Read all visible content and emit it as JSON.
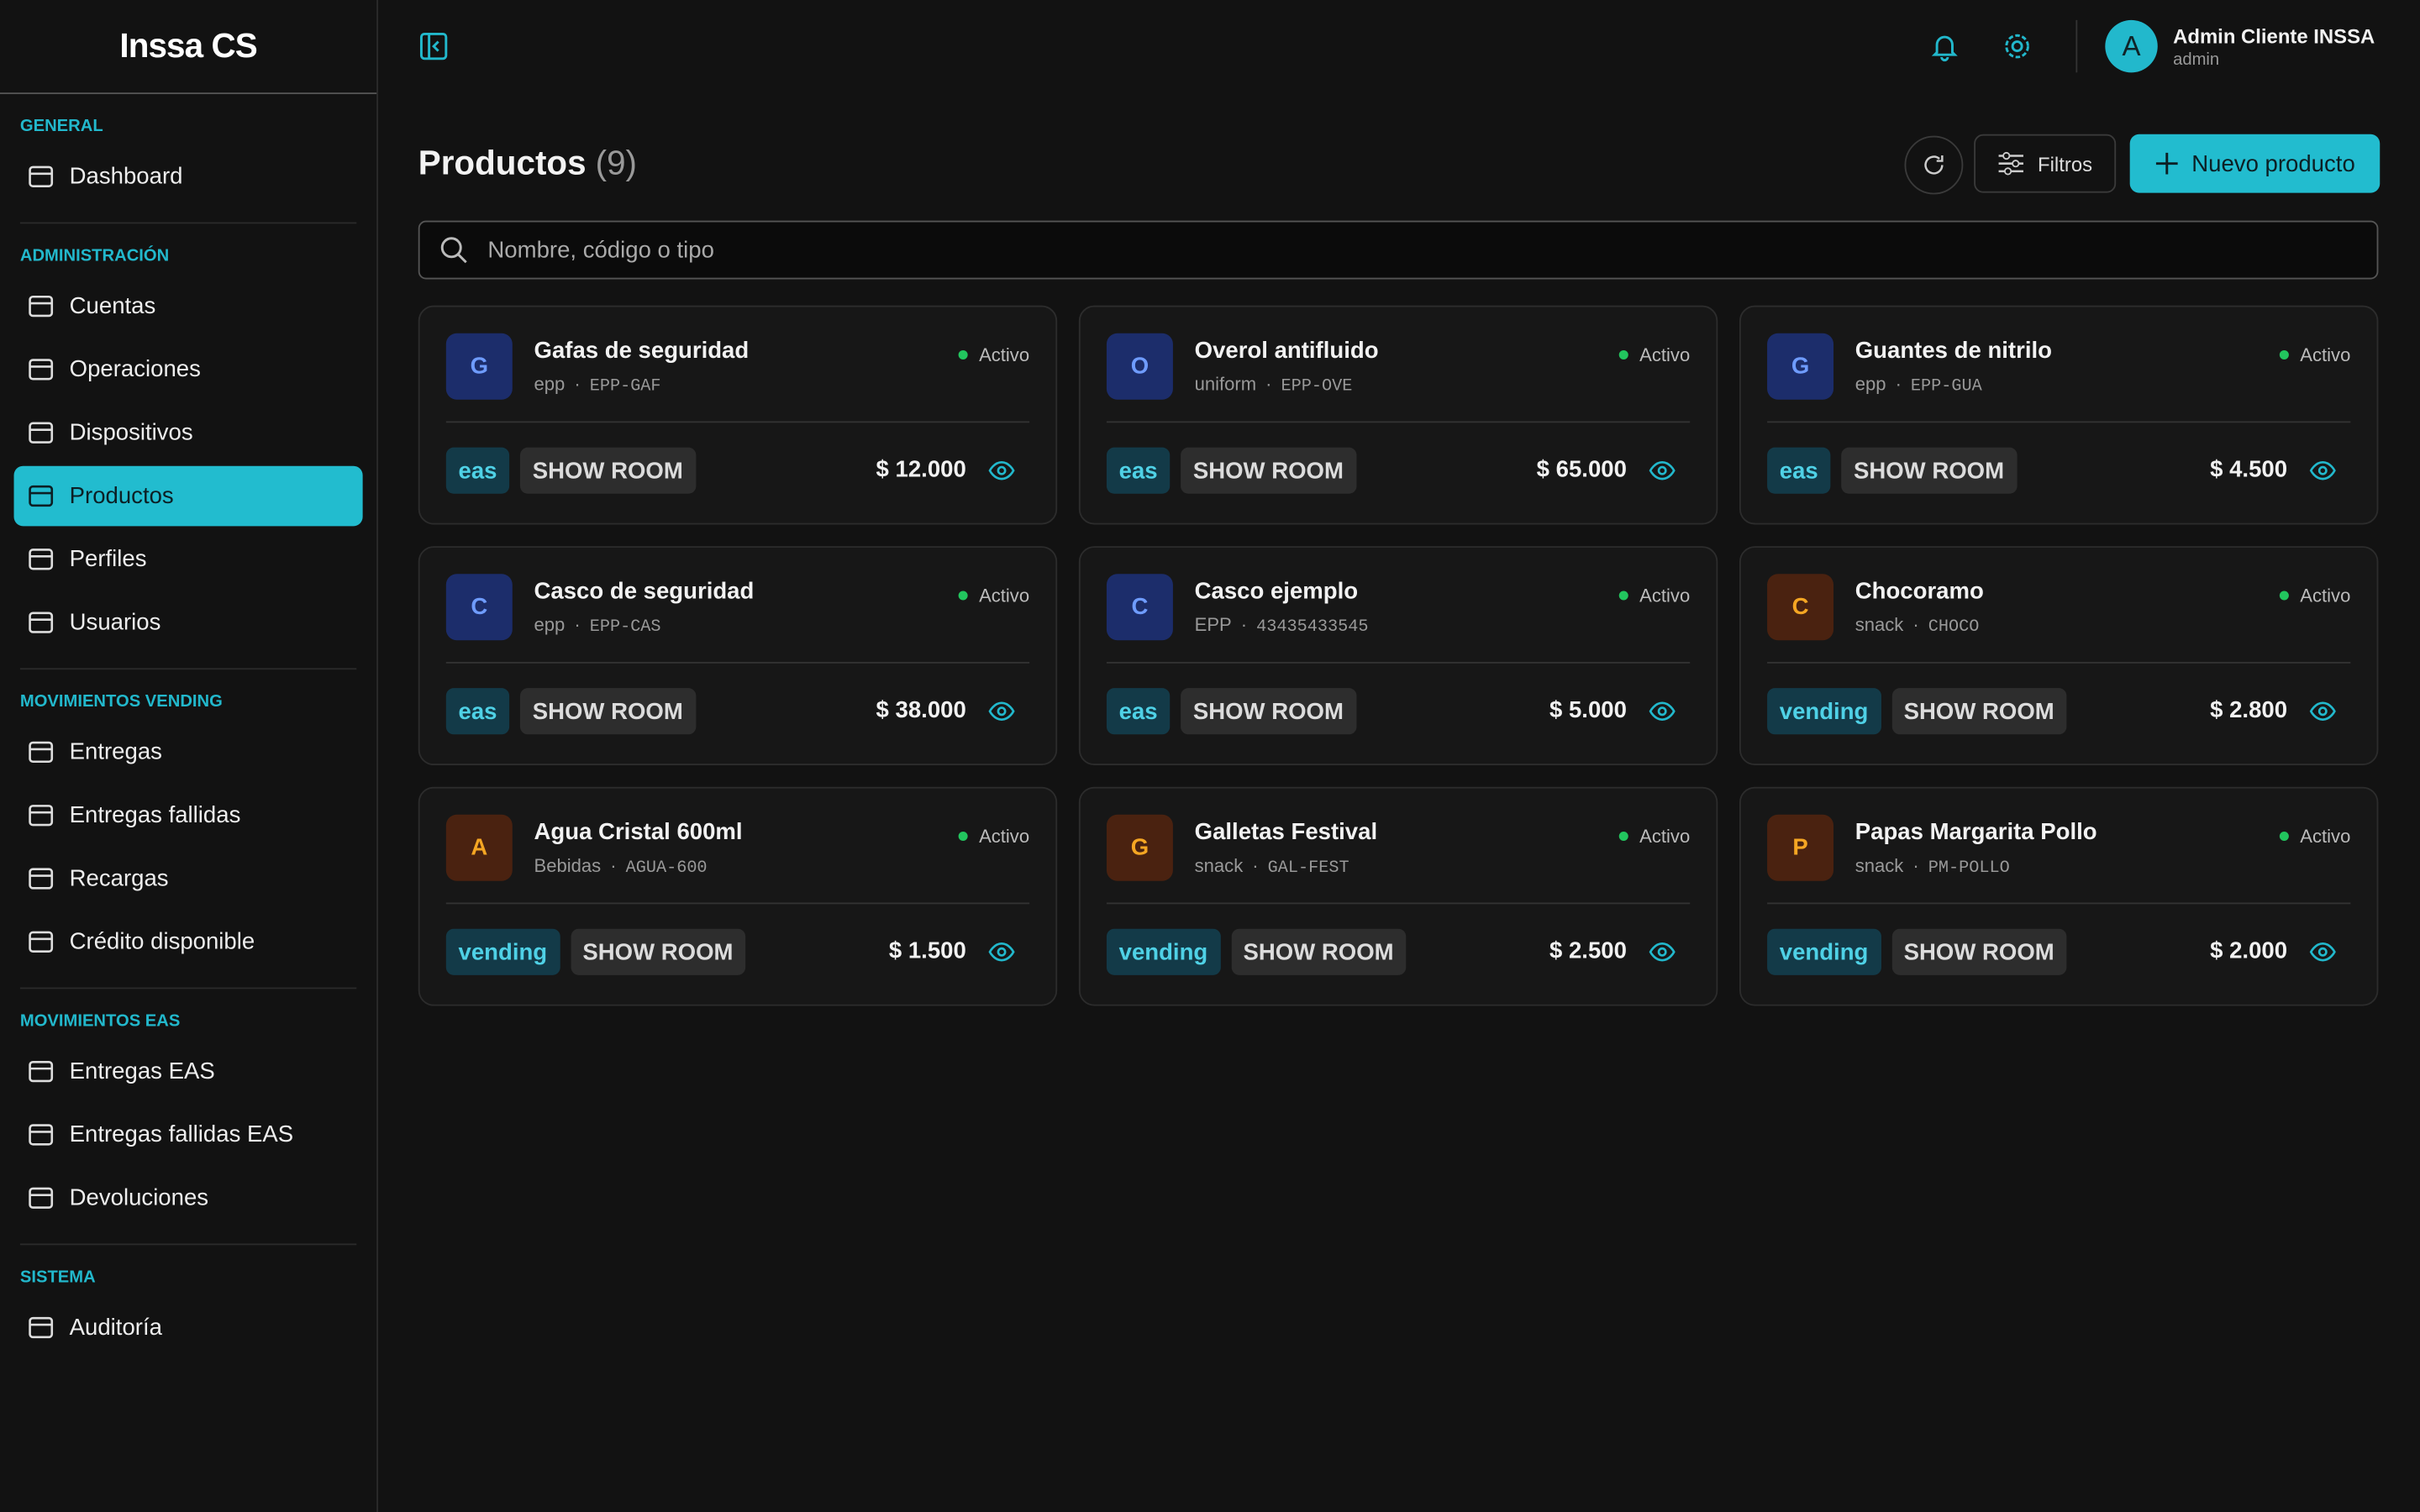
{
  "logo": "Inssa CS",
  "sidebar": {
    "active_item": "Productos",
    "sections": [
      {
        "title": "GENERAL",
        "items": [
          "Dashboard"
        ]
      },
      {
        "title": "ADMINISTRACIÓN",
        "items": [
          "Cuentas",
          "Operaciones",
          "Dispositivos",
          "Productos",
          "Perfiles",
          "Usuarios"
        ]
      },
      {
        "title": "MOVIMIENTOS VENDING",
        "items": [
          "Entregas",
          "Entregas fallidas",
          "Recargas",
          "Crédito disponible"
        ]
      },
      {
        "title": "MOVIMIENTOS EAS",
        "items": [
          "Entregas EAS",
          "Entregas fallidas EAS",
          "Devoluciones"
        ]
      },
      {
        "title": "SISTEMA",
        "items": [
          "Auditoría"
        ]
      }
    ]
  },
  "topbar": {
    "user_initial": "A",
    "user_name": "Admin Cliente INSSA",
    "user_role": "admin"
  },
  "header": {
    "title": "Productos",
    "count": "(9)",
    "filters_button": "Filtros",
    "new_button": "Nuevo producto",
    "search_placeholder": "Nombre, código o tipo"
  },
  "products": [
    {
      "initial": "G",
      "tone": "blue",
      "name": "Gafas de seguridad",
      "type": "epp",
      "code": "EPP-GAF",
      "status": "Activo",
      "tags": [
        "eas",
        "SHOW ROOM"
      ],
      "price": "$ 12.000"
    },
    {
      "initial": "O",
      "tone": "blue",
      "name": "Overol antifluido",
      "type": "uniform",
      "code": "EPP-OVE",
      "status": "Activo",
      "tags": [
        "eas",
        "SHOW ROOM"
      ],
      "price": "$ 65.000"
    },
    {
      "initial": "G",
      "tone": "blue",
      "name": "Guantes de nitrilo",
      "type": "epp",
      "code": "EPP-GUA",
      "status": "Activo",
      "tags": [
        "eas",
        "SHOW ROOM"
      ],
      "price": "$ 4.500"
    },
    {
      "initial": "C",
      "tone": "blue",
      "name": "Casco de seguridad",
      "type": "epp",
      "code": "EPP-CAS",
      "status": "Activo",
      "tags": [
        "eas",
        "SHOW ROOM"
      ],
      "price": "$ 38.000"
    },
    {
      "initial": "C",
      "tone": "blue",
      "name": "Casco ejemplo",
      "type": "EPP",
      "code": "43435433545",
      "status": "Activo",
      "tags": [
        "eas",
        "SHOW ROOM"
      ],
      "price": "$ 5.000"
    },
    {
      "initial": "C",
      "tone": "amber",
      "name": "Chocoramo",
      "type": "snack",
      "code": "CHOCO",
      "status": "Activo",
      "tags": [
        "vending",
        "SHOW ROOM"
      ],
      "price": "$ 2.800"
    },
    {
      "initial": "A",
      "tone": "amber",
      "name": "Agua Cristal 600ml",
      "type": "Bebidas",
      "code": "AGUA-600",
      "status": "Activo",
      "tags": [
        "vending",
        "SHOW ROOM"
      ],
      "price": "$ 1.500"
    },
    {
      "initial": "G",
      "tone": "amber",
      "name": "Galletas Festival",
      "type": "snack",
      "code": "GAL-FEST",
      "status": "Activo",
      "tags": [
        "vending",
        "SHOW ROOM"
      ],
      "price": "$ 2.500"
    },
    {
      "initial": "P",
      "tone": "amber",
      "name": "Papas Margarita Pollo",
      "type": "snack",
      "code": "PM-POLLO",
      "status": "Activo",
      "tags": [
        "vending",
        "SHOW ROOM"
      ],
      "price": "$ 2.000"
    }
  ]
}
